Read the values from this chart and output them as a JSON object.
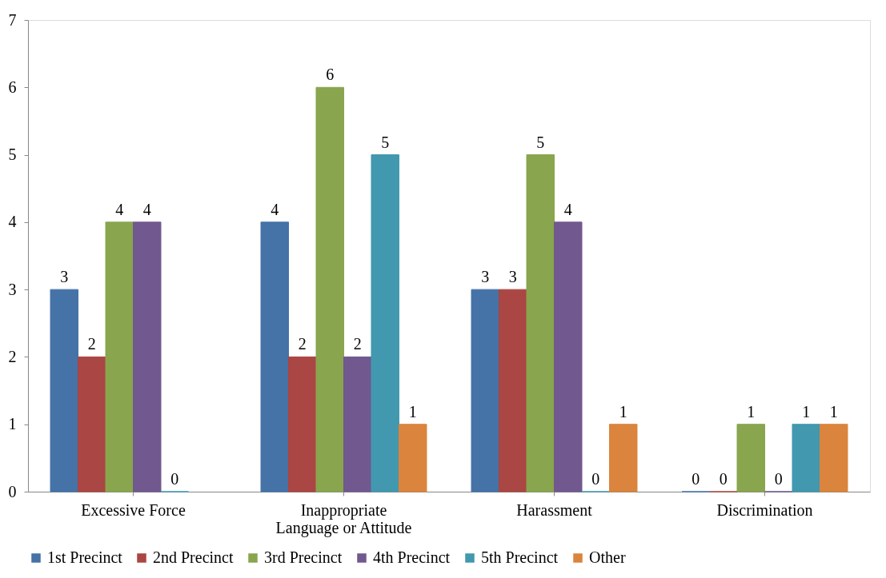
{
  "chart_data": {
    "type": "bar",
    "categories": [
      "Excessive Force",
      "Inappropriate\nLanguage or Attitude",
      "Harassment",
      "Discrimination"
    ],
    "series": [
      {
        "name": "1st Precinct",
        "color": "#4572a7",
        "values": [
          3,
          4,
          3,
          0
        ]
      },
      {
        "name": "2nd Precinct",
        "color": "#aa4643",
        "values": [
          2,
          2,
          3,
          0
        ]
      },
      {
        "name": "3rd Precinct",
        "color": "#89a54e",
        "values": [
          4,
          6,
          5,
          1
        ]
      },
      {
        "name": "4th Precinct",
        "color": "#71588f",
        "values": [
          4,
          2,
          4,
          0
        ]
      },
      {
        "name": "5th Precinct",
        "color": "#4198af",
        "values": [
          0,
          5,
          0,
          1
        ]
      },
      {
        "name": "Other",
        "color": "#db843d",
        "values": [
          null,
          1,
          1,
          1
        ]
      }
    ],
    "ylim": [
      0,
      7
    ],
    "yticks": [
      0,
      1,
      2,
      3,
      4,
      5,
      6,
      7
    ],
    "grid": false,
    "legend": "bottom",
    "data_labels": true
  }
}
